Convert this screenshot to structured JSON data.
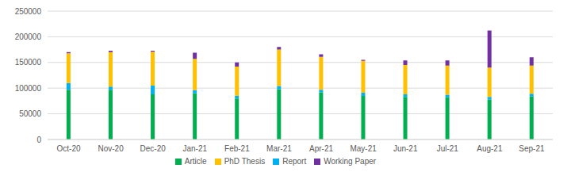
{
  "chart_data": {
    "type": "bar",
    "stacked": true,
    "grid": true,
    "legend": "bottom",
    "categories": [
      "Oct-20",
      "Nov-20",
      "Dec-20",
      "Jan-21",
      "Feb-21",
      "Mar-21",
      "Apr-21",
      "May-21",
      "Jun-21",
      "Jul-21",
      "Aug-21",
      "Sep-21"
    ],
    "series": [
      {
        "name": "Article",
        "color": "#00b050",
        "values": [
          97000,
          97000,
          88000,
          90000,
          80000,
          98000,
          92000,
          85000,
          83000,
          82000,
          78000,
          84000
        ]
      },
      {
        "name": "Report",
        "color": "#00b0f0",
        "values": [
          13000,
          6000,
          17000,
          6000,
          5000,
          6000,
          5000,
          6000,
          5000,
          5000,
          5000,
          5000
        ]
      },
      {
        "name": "PhD Thesis",
        "color": "#ffc000",
        "values": [
          58000,
          67000,
          66000,
          61000,
          57000,
          71000,
          64000,
          62000,
          57000,
          57000,
          57000,
          55000
        ]
      },
      {
        "name": "Working Paper",
        "color": "#7030a0",
        "values": [
          2000,
          3000,
          2000,
          12000,
          8000,
          5000,
          5000,
          2000,
          9000,
          10000,
          72000,
          16000
        ]
      }
    ],
    "ylim": [
      0,
      250000
    ],
    "yticks": [
      0,
      50000,
      100000,
      150000,
      200000,
      250000
    ]
  }
}
